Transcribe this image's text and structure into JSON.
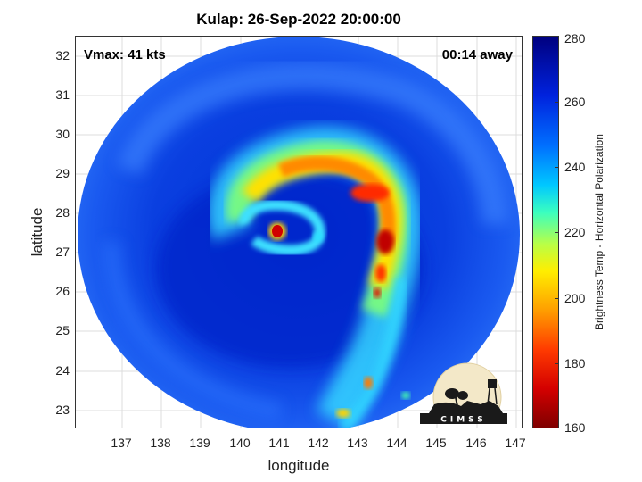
{
  "title": "Kulap: 26-Sep-2022 20:00:00",
  "vmax_label": "Vmax: 41 kts",
  "away_label": "00:14 away",
  "xlabel": "longitude",
  "ylabel": "latitude",
  "x_ticks": [
    "137",
    "138",
    "139",
    "140",
    "141",
    "142",
    "143",
    "144",
    "145",
    "146",
    "147"
  ],
  "y_ticks": [
    "23",
    "24",
    "25",
    "26",
    "27",
    "28",
    "29",
    "30",
    "31",
    "32"
  ],
  "colorbar": {
    "label": "Brightness Temp - Horizontal Polarization",
    "ticks": [
      "280",
      "260",
      "240",
      "220",
      "200",
      "180",
      "160"
    ],
    "range": [
      160,
      280
    ]
  },
  "logo_text": "CIMSS",
  "map": {
    "lon_range": [
      136.3,
      147.6
    ],
    "lat_range": [
      22.5,
      32.5
    ],
    "swath_edge": "circular passive-microwave swath",
    "center": {
      "lon": 141.5,
      "lat": 27.5
    }
  }
}
